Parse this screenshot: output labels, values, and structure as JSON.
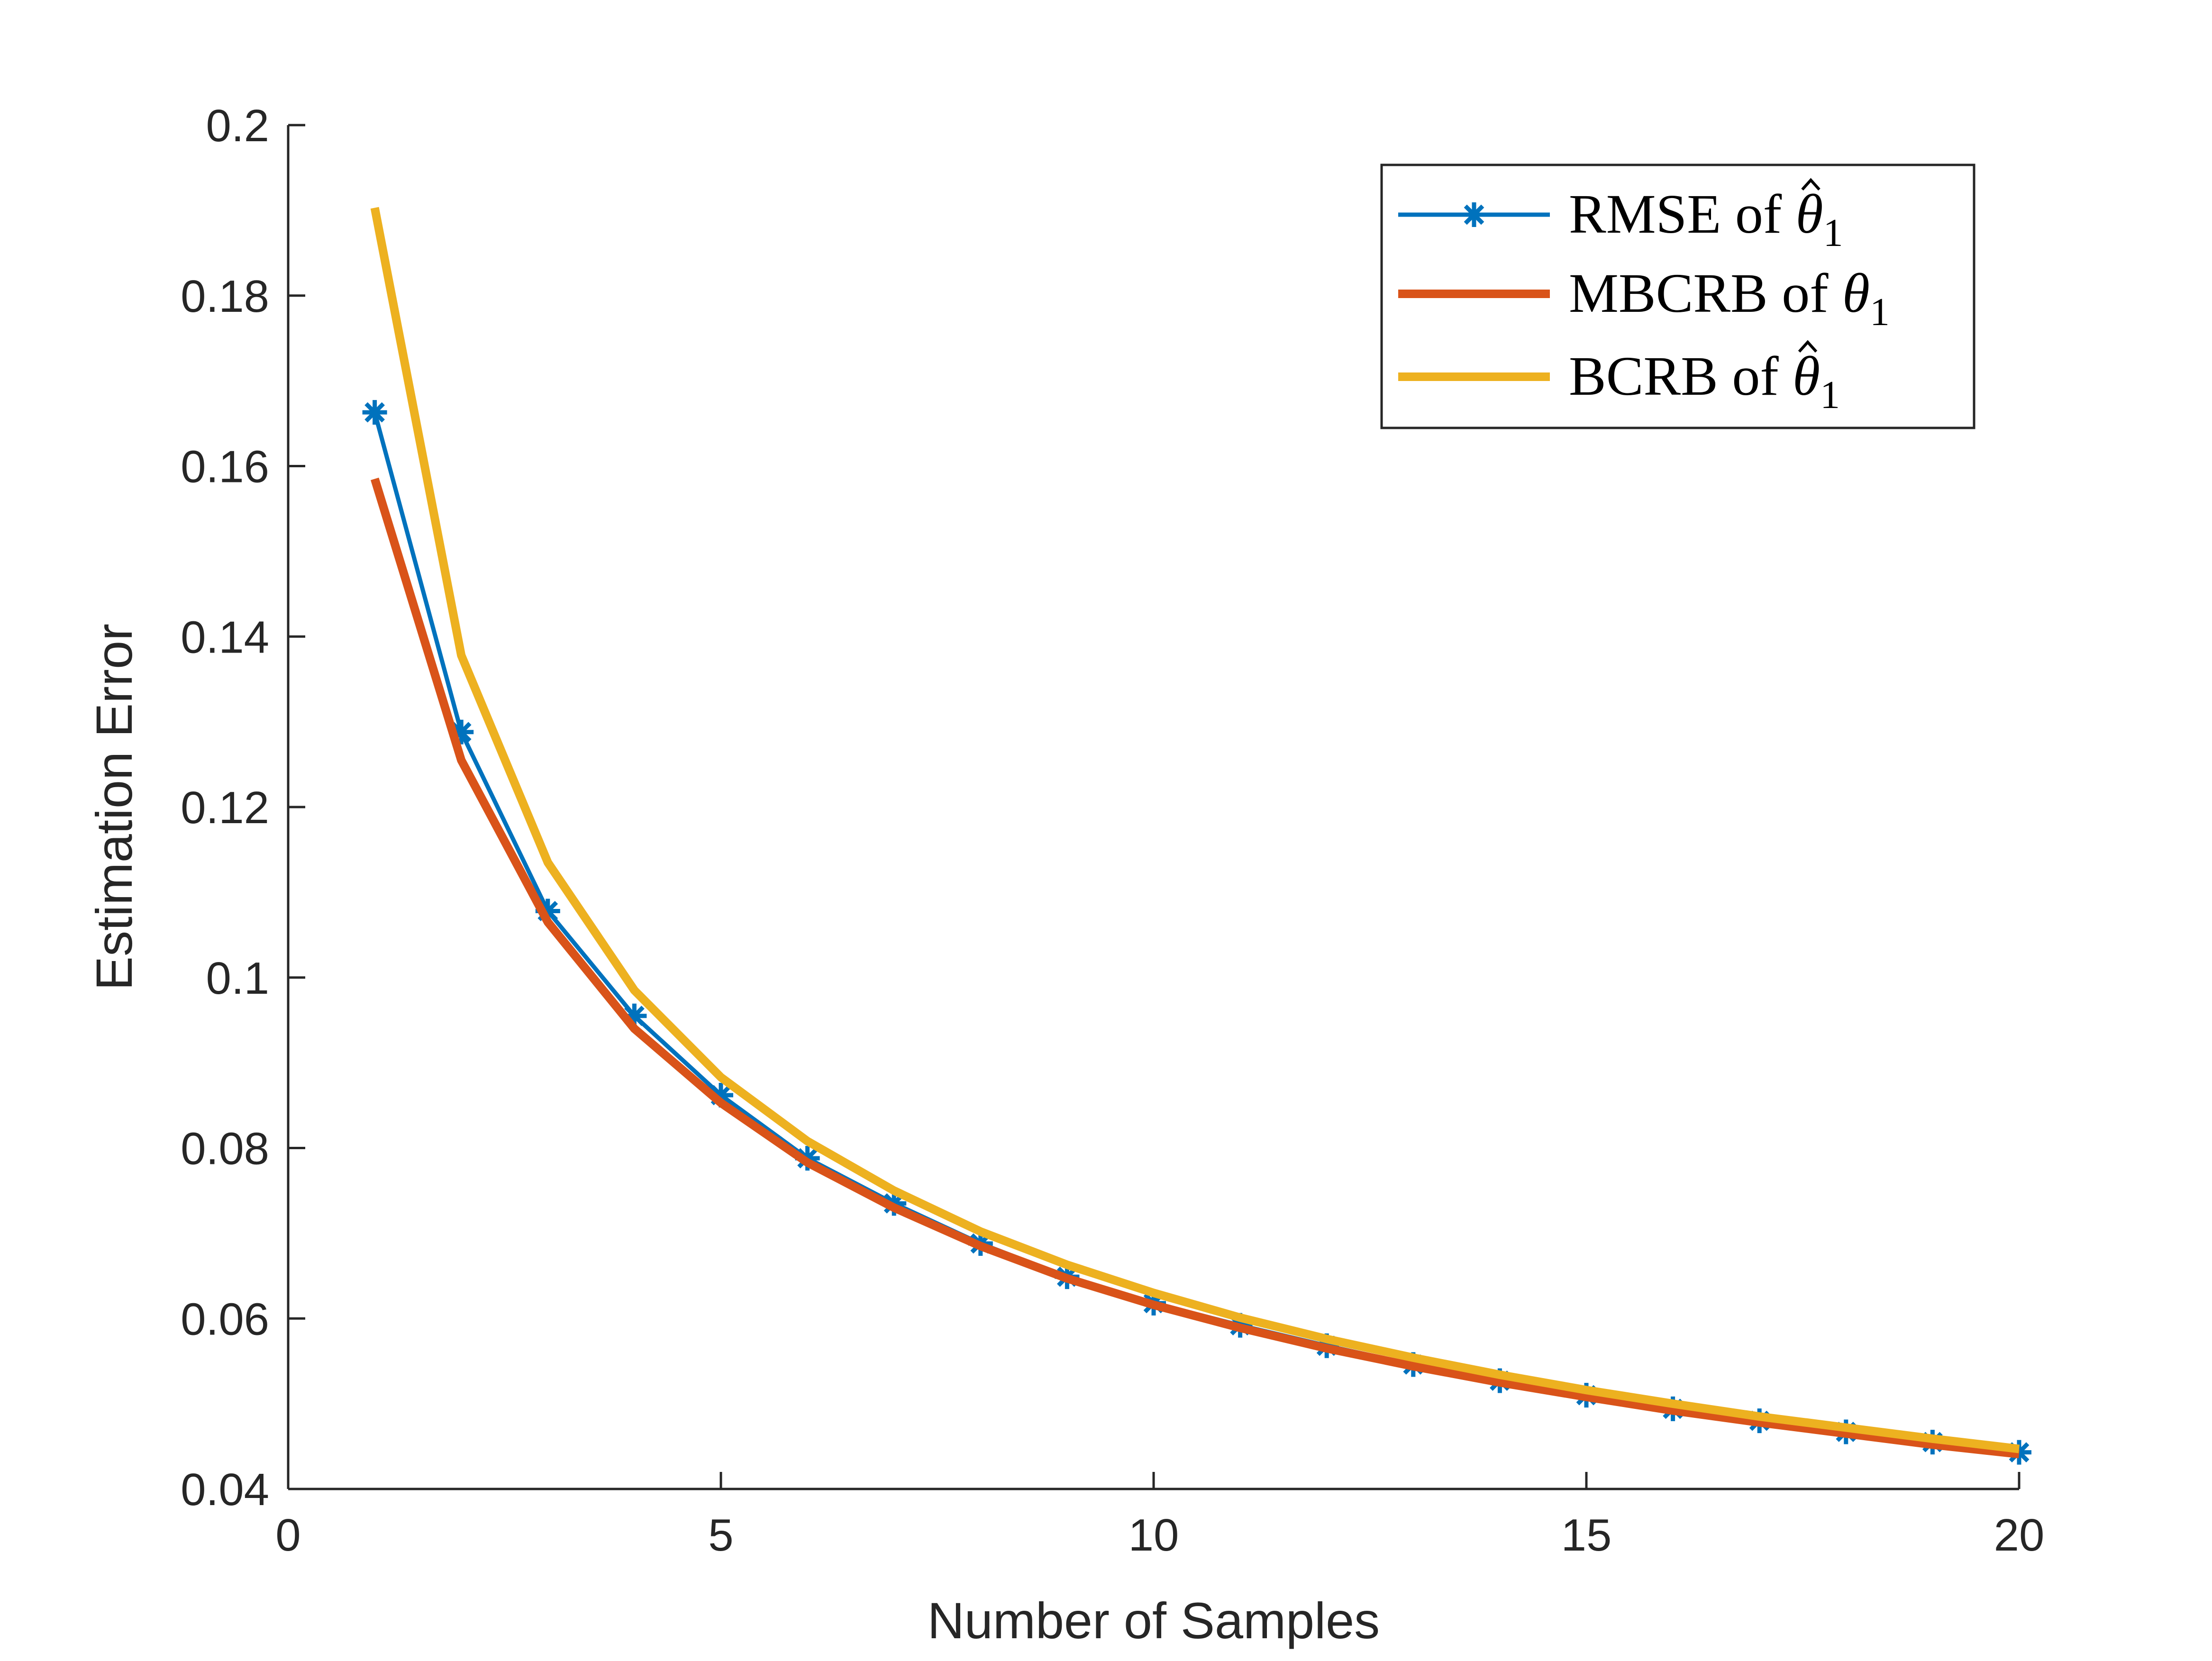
{
  "chart_data": {
    "type": "line",
    "title": "",
    "xlabel": "Number of Samples",
    "ylabel": "Estimation Error",
    "xlim": [
      0,
      20
    ],
    "ylim": [
      0.04,
      0.2
    ],
    "xticks": [
      0,
      5,
      10,
      15,
      20
    ],
    "xtick_labels": [
      "0",
      "5",
      "10",
      "15",
      "20"
    ],
    "yticks": [
      0.04,
      0.06,
      0.08,
      0.1,
      0.12,
      0.14,
      0.16,
      0.18,
      0.2
    ],
    "ytick_labels": [
      "0.04",
      "0.06",
      "0.08",
      "0.1",
      "0.12",
      "0.14",
      "0.16",
      "0.18",
      "0.2"
    ],
    "grid": false,
    "legend_position": "top-right",
    "x": [
      1,
      2,
      3,
      4,
      5,
      6,
      7,
      8,
      9,
      10,
      11,
      12,
      13,
      14,
      15,
      16,
      17,
      18,
      19,
      20
    ],
    "series": [
      {
        "name": "RMSE of θ̂1",
        "legend_base": "RMSE of ",
        "legend_symbol": "θ",
        "legend_hat": true,
        "legend_sub": "1",
        "color": "#0072BD",
        "marker": "asterisk",
        "values": [
          0.1663,
          0.1288,
          0.1078,
          0.0955,
          0.0862,
          0.0788,
          0.0735,
          0.0688,
          0.0649,
          0.0618,
          0.0592,
          0.0568,
          0.0546,
          0.0527,
          0.051,
          0.0494,
          0.048,
          0.0467,
          0.0455,
          0.0443
        ]
      },
      {
        "name": "MBCRB of θ1",
        "legend_base": "MBCRB of ",
        "legend_symbol": "θ",
        "legend_hat": false,
        "legend_sub": "1",
        "color": "#D95319",
        "marker": "none",
        "values": [
          0.1585,
          0.1255,
          0.1065,
          0.094,
          0.0853,
          0.0783,
          0.073,
          0.0685,
          0.0647,
          0.0616,
          0.0589,
          0.0565,
          0.0544,
          0.0525,
          0.0508,
          0.0492,
          0.0478,
          0.0465,
          0.0452,
          0.0441
        ]
      },
      {
        "name": "BCRB of θ̂1",
        "legend_base": "BCRB of ",
        "legend_symbol": "θ",
        "legend_hat": true,
        "legend_sub": "1",
        "color": "#EDB120",
        "marker": "none",
        "values": [
          0.1903,
          0.1378,
          0.1135,
          0.0985,
          0.0883,
          0.0808,
          0.075,
          0.0702,
          0.0663,
          0.063,
          0.0601,
          0.0576,
          0.0554,
          0.0534,
          0.0516,
          0.05,
          0.0485,
          0.0472,
          0.0459,
          0.0447
        ]
      }
    ]
  }
}
